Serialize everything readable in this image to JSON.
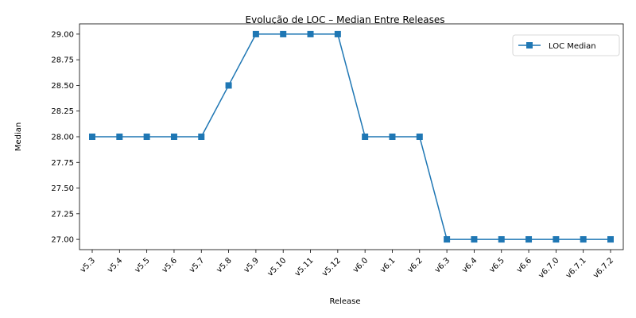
{
  "chart_data": {
    "type": "line",
    "title": "Evolução de LOC – Median Entre Releases",
    "xlabel": "Release",
    "ylabel": "Median",
    "categories": [
      "v5.3",
      "v5.4",
      "v5.5",
      "v5.6",
      "v5.7",
      "v5.8",
      "v5.9",
      "v5.10",
      "v5.11",
      "v5.12",
      "v6.0",
      "v6.1",
      "v6.2",
      "v6.3",
      "v6.4",
      "v6.5",
      "v6.6",
      "v6.7.0",
      "v6.7.1",
      "v6.7.2"
    ],
    "series": [
      {
        "name": "LOC Median",
        "color": "#1f77b4",
        "marker": "square",
        "values": [
          28,
          28,
          28,
          28,
          28,
          28.5,
          29,
          29,
          29,
          29,
          28,
          28,
          28,
          27,
          27,
          27,
          27,
          27,
          27,
          27
        ]
      }
    ],
    "ylim": [
      26.9,
      29.1
    ],
    "yticks": [
      "27.00",
      "27.25",
      "27.50",
      "27.75",
      "28.00",
      "28.25",
      "28.50",
      "28.75",
      "29.00"
    ],
    "grid": false,
    "legend_position": "upper right"
  }
}
